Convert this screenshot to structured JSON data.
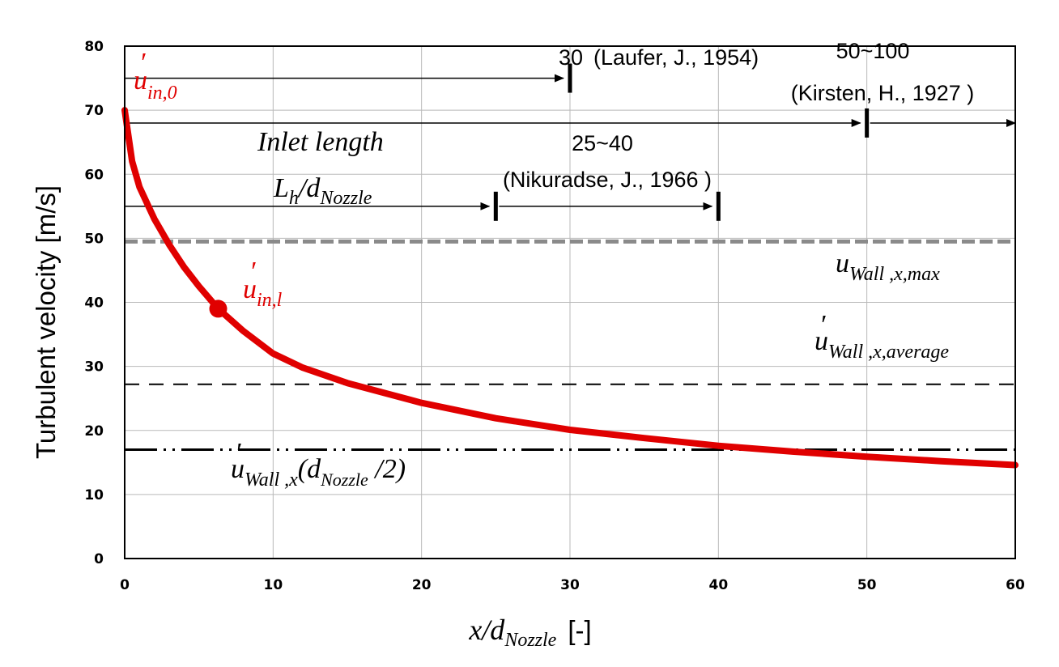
{
  "chart_data": {
    "type": "line",
    "xlabel_main": "x/d",
    "xlabel_sub": "Nozzle",
    "xlabel_unit": "[-]",
    "ylabel": "Turbulent velocity [m/s]",
    "xlim": [
      0,
      60
    ],
    "ylim": [
      0,
      80
    ],
    "x_ticks": [
      "0",
      "10",
      "20",
      "30",
      "40",
      "50",
      "60"
    ],
    "y_ticks": [
      "0",
      "10",
      "20",
      "30",
      "40",
      "50",
      "60",
      "70",
      "80"
    ],
    "grid": true,
    "series": [
      {
        "color": "#e00000",
        "x": [
          0,
          0.5,
          1,
          2,
          3,
          4,
          5,
          6.3,
          8,
          10,
          12,
          15,
          20,
          25,
          30,
          35,
          40,
          45,
          50,
          55,
          60
        ],
        "y": [
          70,
          62,
          58,
          53,
          49,
          45.5,
          42.5,
          39,
          35.5,
          32,
          29.8,
          27.4,
          24.3,
          21.9,
          20.1,
          18.8,
          17.6,
          16.7,
          15.9,
          15.2,
          14.6
        ]
      }
    ],
    "reference_lines": [
      {
        "name": "u'Wall,x,max",
        "y": 49.5,
        "style": "dotted-gray"
      },
      {
        "name": "u'Wall,x,average",
        "y": 27.2,
        "style": "dashed"
      },
      {
        "name": "u'Wall,x(dNozzle/2)",
        "y": 17,
        "style": "dash-dot"
      }
    ],
    "points": [
      {
        "label": "u'in,l",
        "x": 6.3,
        "y": 39
      }
    ],
    "annotations": {
      "inlet_length_title": "Inlet length",
      "inlet_length_ratio_main": "L",
      "inlet_length_ratio_sub1": "h",
      "inlet_length_ratio_mid": "/d",
      "inlet_length_ratio_sub2": "Nozzle",
      "laufer_value": "30",
      "laufer_ref": "(Laufer, J., 1954)",
      "laufer_x": 30,
      "laufer_y": 75,
      "kirsten_value": "50~100",
      "kirsten_ref": "(Kirsten, H., 1927 )",
      "kirsten_x": 50,
      "kirsten_y": 68,
      "nikuradse_value": "25~40",
      "nikuradse_ref": "(Nikuradse, J., 1966 )",
      "nikuradse_x_start": 25,
      "nikuradse_x_end": 40,
      "nikuradse_y": 55,
      "u_in0_main": "u",
      "u_in0_sub": "in,0",
      "u_inl_main": "u",
      "u_inl_sub": "in,l",
      "u_wall_max_main": "u",
      "u_wall_max_sub": "Wall ,x,max",
      "u_wall_avg_main": "u",
      "u_wall_avg_sub": "Wall ,x,average",
      "u_wall_half_main": "u",
      "u_wall_half_sub": "Wall ,x",
      "u_wall_half_paren_open": "(d",
      "u_wall_half_paren_sub": "Nozzle",
      "u_wall_half_paren_close": " /2)"
    }
  }
}
